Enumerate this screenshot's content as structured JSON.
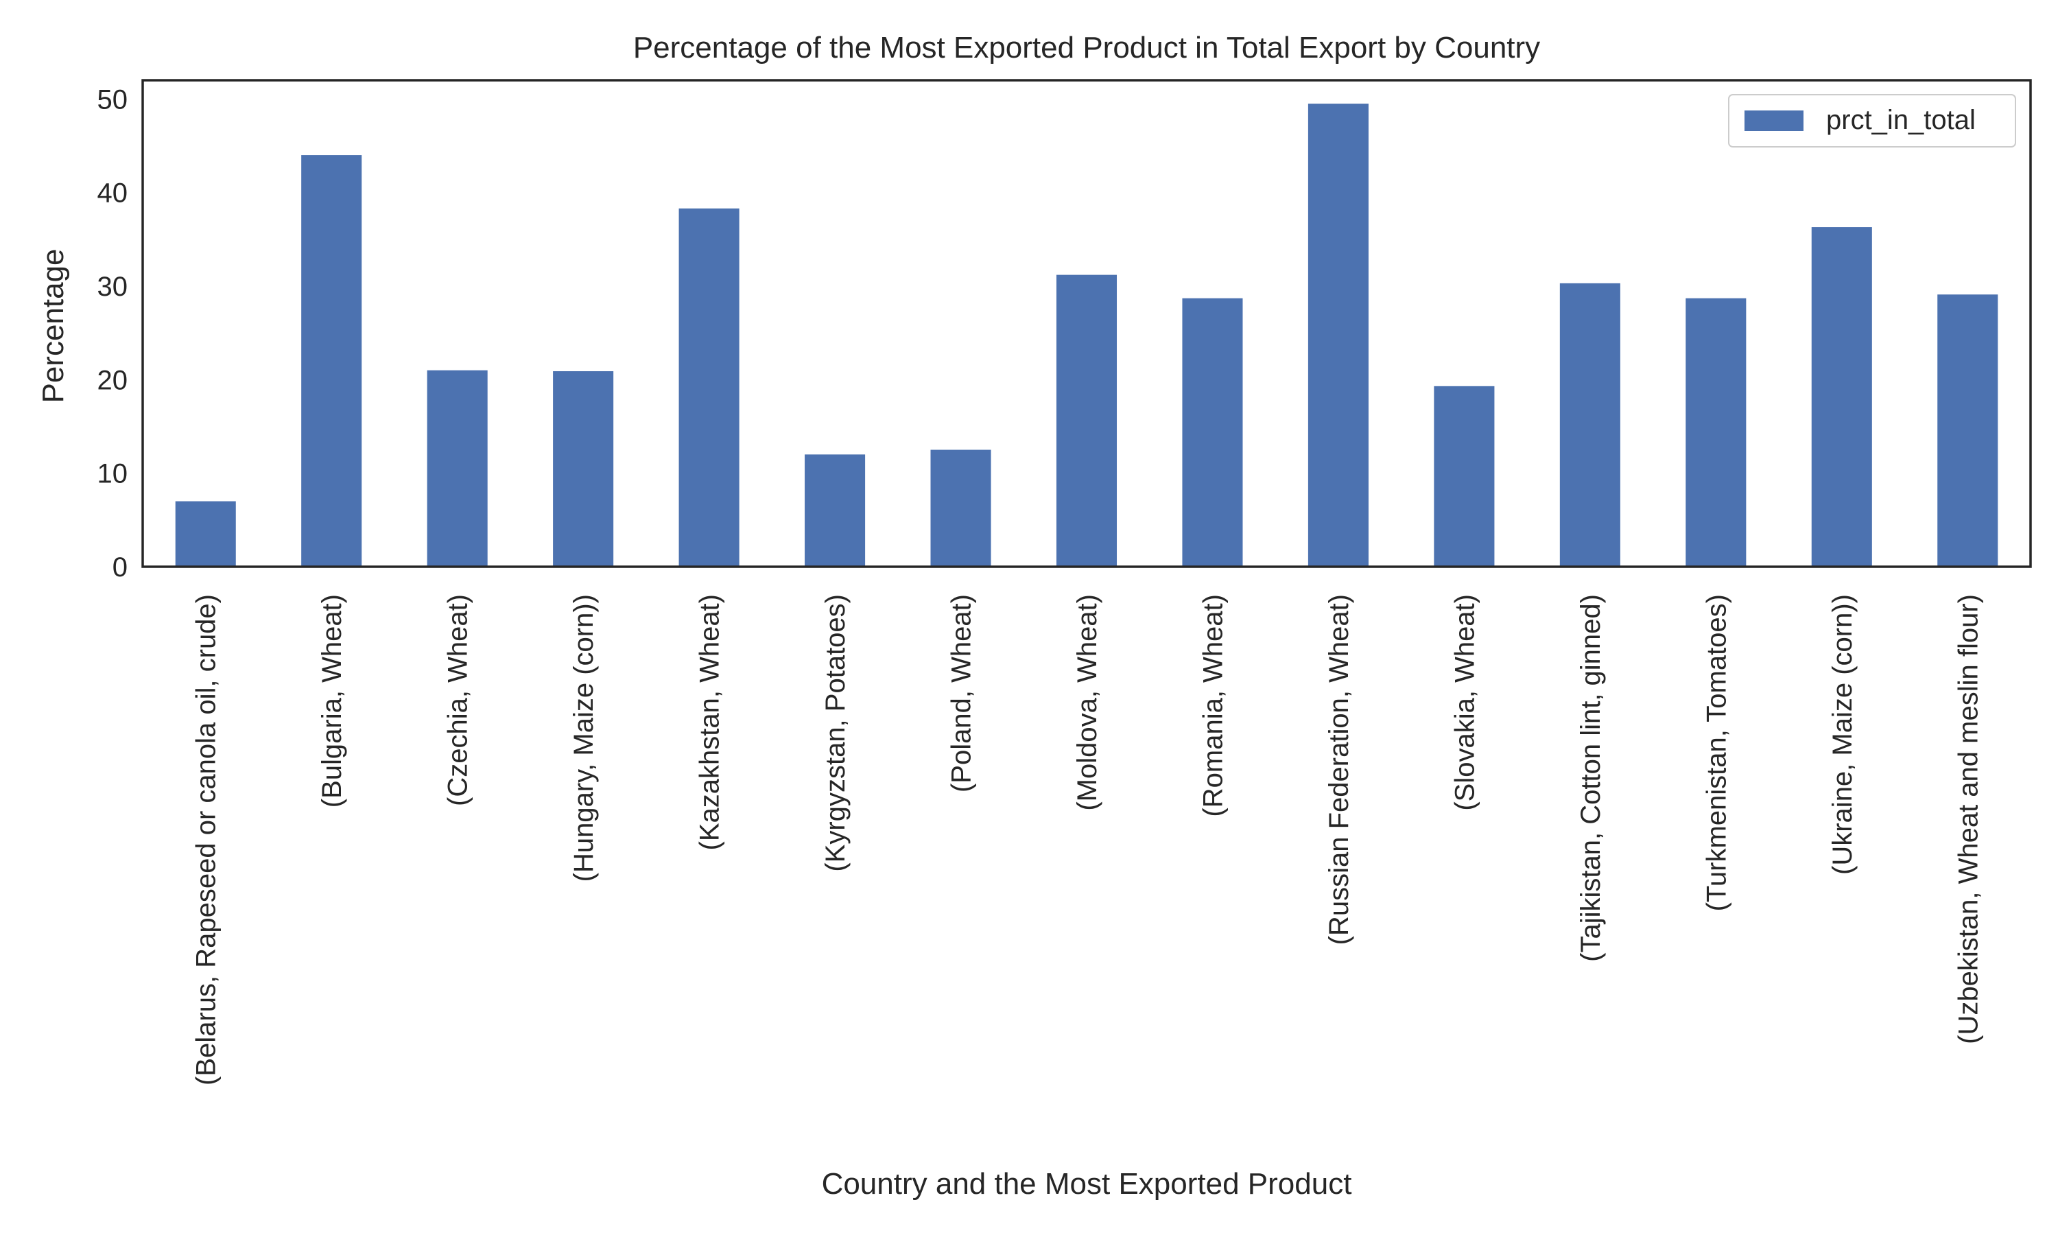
{
  "chart_data": {
    "type": "bar",
    "title": "Percentage of the Most Exported Product in Total Export by Country",
    "xlabel": "Country and the Most Exported Product",
    "ylabel": "Percentage",
    "ylim": [
      0,
      52
    ],
    "yticks": [
      "0",
      "10",
      "20",
      "30",
      "40",
      "50"
    ],
    "ytick_values": [
      0,
      10,
      20,
      30,
      40,
      50
    ],
    "grid": false,
    "legend_position": "top-right",
    "bar_color": "#4c72b0",
    "categories": [
      "(Belarus, Rapeseed or canola oil, crude)",
      "(Bulgaria, Wheat)",
      "(Czechia, Wheat)",
      "(Hungary, Maize (corn))",
      "(Kazakhstan, Wheat)",
      "(Kyrgyzstan, Potatoes)",
      "(Poland, Wheat)",
      "(Moldova, Wheat)",
      "(Romania, Wheat)",
      "(Russian Federation, Wheat)",
      "(Slovakia, Wheat)",
      "(Tajikistan, Cotton lint, ginned)",
      "(Turkmenistan, Tomatoes)",
      "(Ukraine, Maize (corn))",
      "(Uzbekistan, Wheat and meslin flour)"
    ],
    "series": [
      {
        "name": "prct_in_total",
        "values": [
          7.0,
          44.0,
          21.0,
          20.9,
          38.3,
          12.0,
          12.5,
          31.2,
          28.7,
          49.5,
          19.3,
          30.3,
          28.7,
          36.3,
          29.1
        ]
      }
    ]
  }
}
